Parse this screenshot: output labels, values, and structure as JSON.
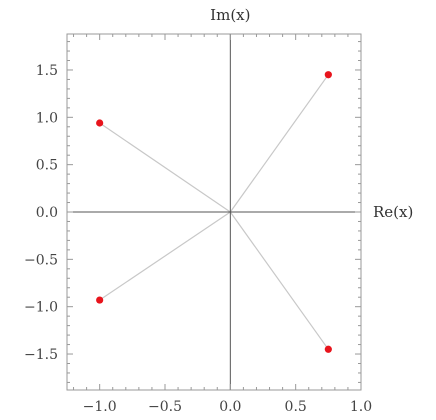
{
  "chart_data": {
    "type": "scatter",
    "title": "",
    "xlabel": "Re(x)",
    "ylabel": "Im(x)",
    "xlim": [
      -1.25,
      1.0
    ],
    "ylim": [
      -1.88,
      1.88
    ],
    "x_ticks": [
      -1.0,
      -0.5,
      0.0,
      0.5,
      1.0
    ],
    "x_tick_labels": [
      "−1.0",
      "−0.5",
      "0.0",
      "0.5",
      "1.0"
    ],
    "y_ticks": [
      1.5,
      1.0,
      0.5,
      0.0,
      -0.5,
      -1.0,
      -1.5
    ],
    "y_tick_labels": [
      "1.5",
      "1.0",
      "0.5",
      "0.0",
      "−0.5",
      "−1.0",
      "−1.5"
    ],
    "grid": false,
    "series": [
      {
        "points": [
          {
            "x": 0.75,
            "y": 1.45
          },
          {
            "x": -1.0,
            "y": 0.94
          },
          {
            "x": -1.0,
            "y": -0.93
          },
          {
            "x": 0.75,
            "y": -1.45
          }
        ],
        "lines_to_origin": true
      }
    ],
    "colors": {
      "points": "#e8141c",
      "spokes": "#c8c8c8",
      "axes": "#555555",
      "frame": "#999999"
    }
  }
}
